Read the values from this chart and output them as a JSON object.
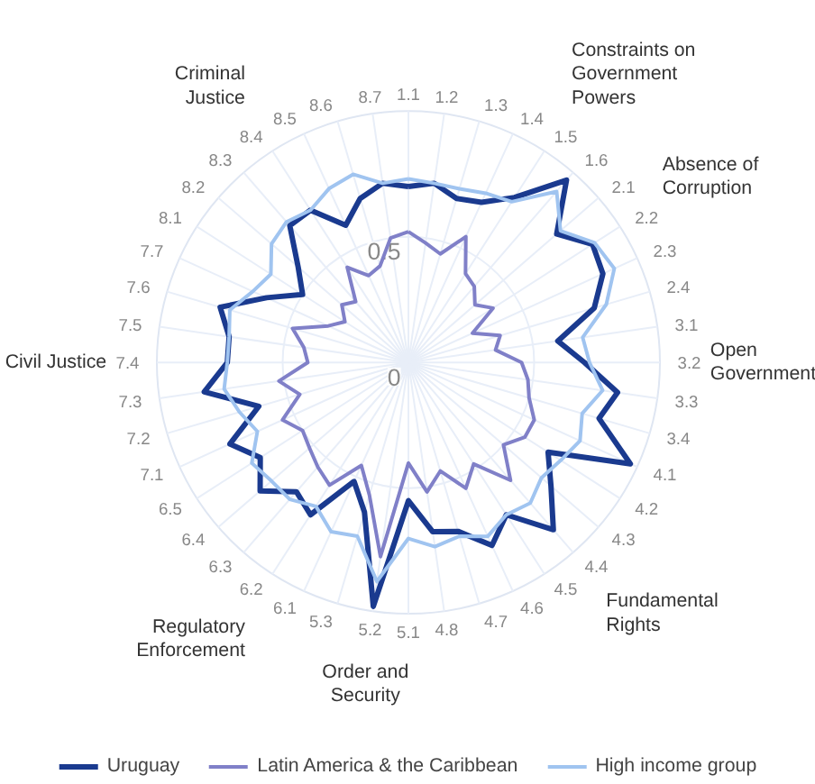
{
  "chart_data": {
    "type": "radar",
    "categories": [
      "1.1",
      "1.2",
      "1.3",
      "1.4",
      "1.5",
      "1.6",
      "2.1",
      "2.2",
      "2.3",
      "2.4",
      "3.1",
      "3.2",
      "3.3",
      "3.4",
      "4.1",
      "4.2",
      "4.3",
      "4.4",
      "4.5",
      "4.6",
      "4.7",
      "4.8",
      "5.1",
      "5.2",
      "5.3",
      "6.1",
      "6.2",
      "6.3",
      "6.4",
      "6.5",
      "7.1",
      "7.2",
      "7.3",
      "7.4",
      "7.5",
      "7.6",
      "7.7",
      "8.1",
      "8.2",
      "8.3",
      "8.4",
      "8.5",
      "8.6",
      "8.7"
    ],
    "series": [
      {
        "name": "Uruguay",
        "color": "#1a3a8f",
        "values": [
          0.7,
          0.72,
          0.68,
          0.7,
          0.78,
          0.96,
          0.78,
          0.87,
          0.85,
          0.77,
          0.6,
          0.7,
          0.84,
          0.79,
          0.97,
          0.66,
          0.75,
          0.88,
          0.72,
          0.8,
          0.7,
          0.68,
          0.55,
          0.98,
          0.62,
          0.52,
          0.72,
          0.68,
          0.78,
          0.7,
          0.78,
          0.62,
          0.82,
          0.72,
          0.72,
          0.78,
          0.62,
          0.5,
          0.58,
          0.72,
          0.72,
          0.6,
          0.68,
          0.72
        ]
      },
      {
        "name": "Latin America & the Caribbean",
        "color": "#8080c8",
        "values": [
          0.52,
          0.48,
          0.45,
          0.55,
          0.42,
          0.4,
          0.35,
          0.4,
          0.28,
          0.38,
          0.35,
          0.45,
          0.48,
          0.5,
          0.55,
          0.55,
          0.5,
          0.62,
          0.48,
          0.55,
          0.45,
          0.52,
          0.4,
          0.78,
          0.55,
          0.45,
          0.58,
          0.55,
          0.52,
          0.5,
          0.55,
          0.45,
          0.52,
          0.4,
          0.42,
          0.48,
          0.35,
          0.3,
          0.35,
          0.32,
          0.45,
          0.38,
          0.4,
          0.5
        ]
      },
      {
        "name": "High income group",
        "color": "#a0c4f0",
        "values": [
          0.73,
          0.72,
          0.72,
          0.74,
          0.76,
          0.9,
          0.8,
          0.88,
          0.9,
          0.82,
          0.7,
          0.72,
          0.78,
          0.72,
          0.75,
          0.72,
          0.7,
          0.74,
          0.72,
          0.76,
          0.72,
          0.74,
          0.7,
          0.88,
          0.72,
          0.74,
          0.68,
          0.72,
          0.72,
          0.74,
          0.66,
          0.7,
          0.74,
          0.72,
          0.72,
          0.74,
          0.68,
          0.65,
          0.72,
          0.74,
          0.72,
          0.76,
          0.78,
          0.72
        ]
      }
    ],
    "ylim": [
      0,
      1
    ],
    "yticks": [
      0,
      0.5
    ],
    "grid": true,
    "legend": "bottom",
    "annotations": [
      {
        "text": "Constraints on Government Powers",
        "x": "1.5"
      },
      {
        "text": "Absence of Corruption",
        "x": "2.2"
      },
      {
        "text": "Open Government",
        "x": "3.2"
      },
      {
        "text": "Fundamental Rights",
        "x": "4.4"
      },
      {
        "text": "Order and Security",
        "x": "5.2"
      },
      {
        "text": "Regulatory Enforcement",
        "x": "6.2"
      },
      {
        "text": "Civil Justice",
        "x": "7.4"
      },
      {
        "text": "Criminal Justice",
        "x": "8.4"
      }
    ]
  }
}
